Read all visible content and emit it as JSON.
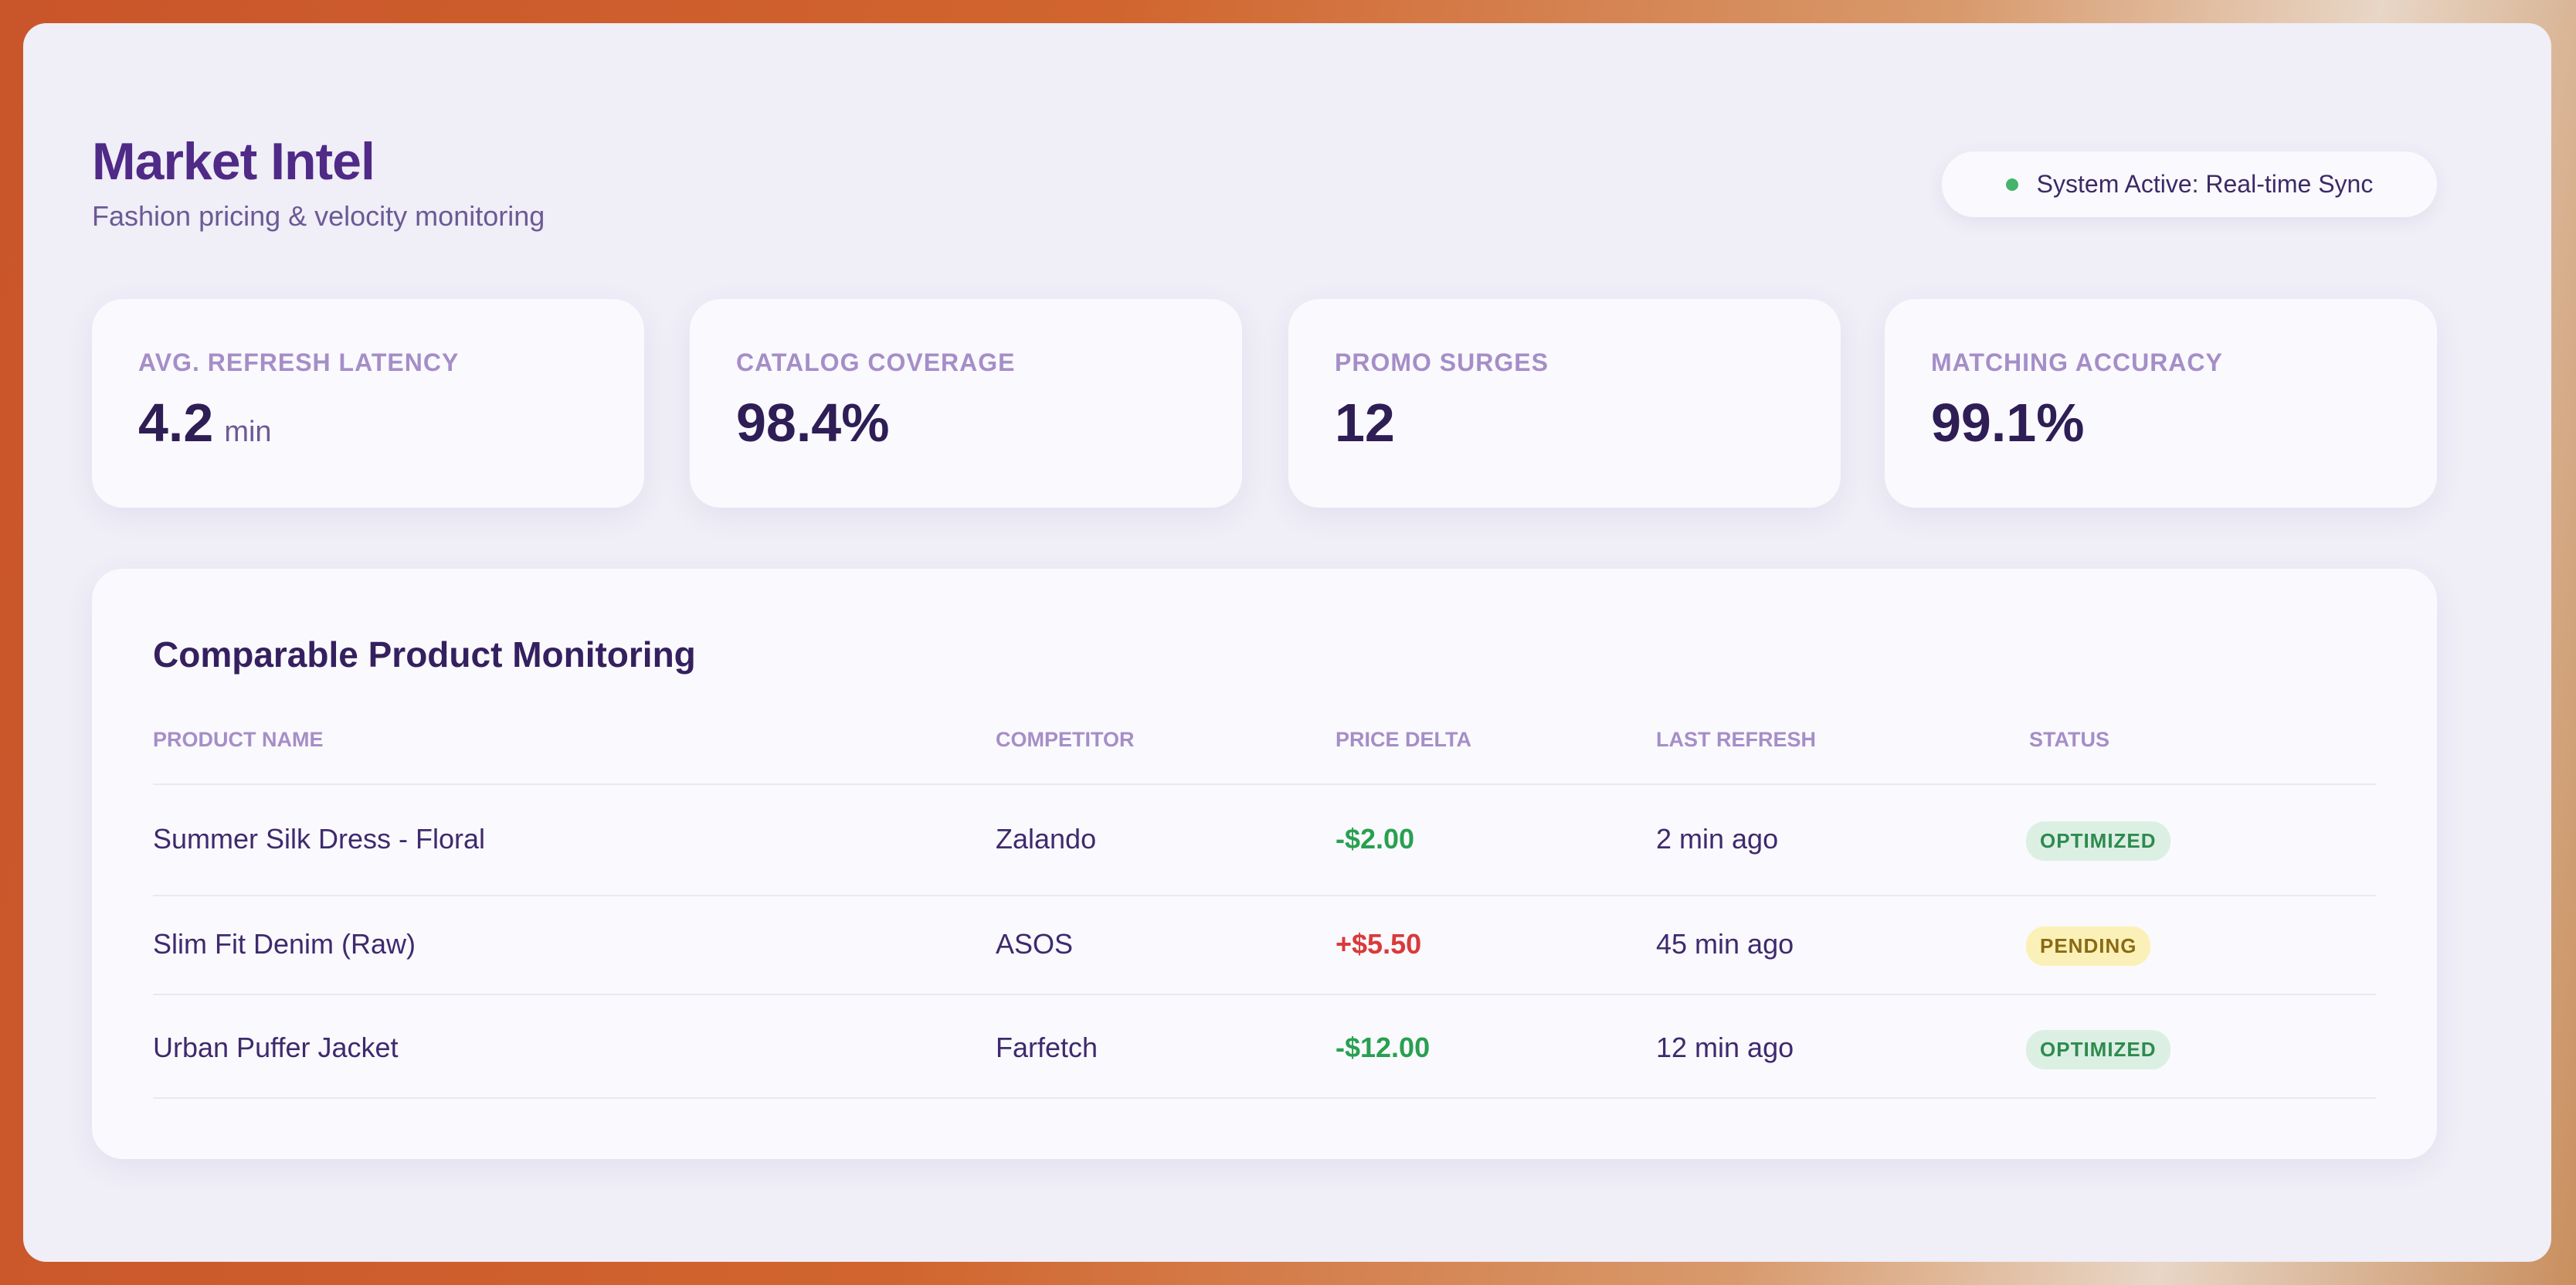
{
  "header": {
    "title": "Market Intel",
    "subtitle": "Fashion pricing & velocity monitoring",
    "status": "System Active: Real-time Sync"
  },
  "metrics": [
    {
      "label": "AVG. REFRESH LATENCY",
      "value": "4.2",
      "unit": "min"
    },
    {
      "label": "CATALOG COVERAGE",
      "value": "98.4%"
    },
    {
      "label": "PROMO SURGES",
      "value": "12"
    },
    {
      "label": "MATCHING ACCURACY",
      "value": "99.1%"
    }
  ],
  "table": {
    "title": "Comparable Product Monitoring",
    "columns": [
      "PRODUCT NAME",
      "COMPETITOR",
      "PRICE DELTA",
      "LAST REFRESH",
      "STATUS"
    ],
    "rows": [
      [
        "Summer Silk Dress - Floral",
        "Zalando",
        "-$2.00",
        "2 min ago",
        "OPTIMIZED"
      ],
      [
        "Slim Fit Denim (Raw)",
        "ASOS",
        "+$5.50",
        "45 min ago",
        "PENDING"
      ],
      [
        "Urban Puffer Jacket",
        "Farfetch",
        "-$12.00",
        "12 min ago",
        "OPTIMIZED"
      ]
    ]
  }
}
